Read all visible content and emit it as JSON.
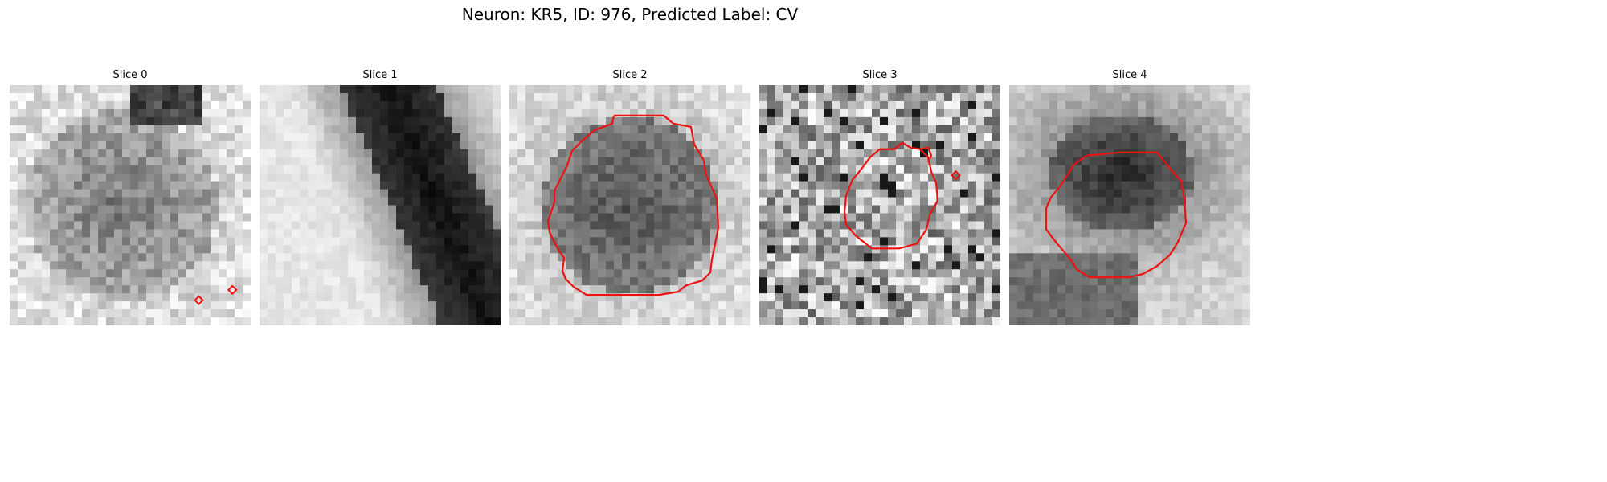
{
  "figure": {
    "title": "Neuron: KR5, ID: 976, Predicted Label: CV"
  },
  "panels": [
    {
      "title": "Slice 0",
      "texture": "soma-blob"
    },
    {
      "title": "Slice 1",
      "texture": "diagonal-dark-band"
    },
    {
      "title": "Slice 2",
      "texture": "soma-blob"
    },
    {
      "title": "Slice 3",
      "texture": "noise"
    },
    {
      "title": "Slice 4",
      "texture": "dark-top-blob"
    }
  ],
  "colors": {
    "contour": "#ee1111",
    "background": "#ffffff"
  }
}
